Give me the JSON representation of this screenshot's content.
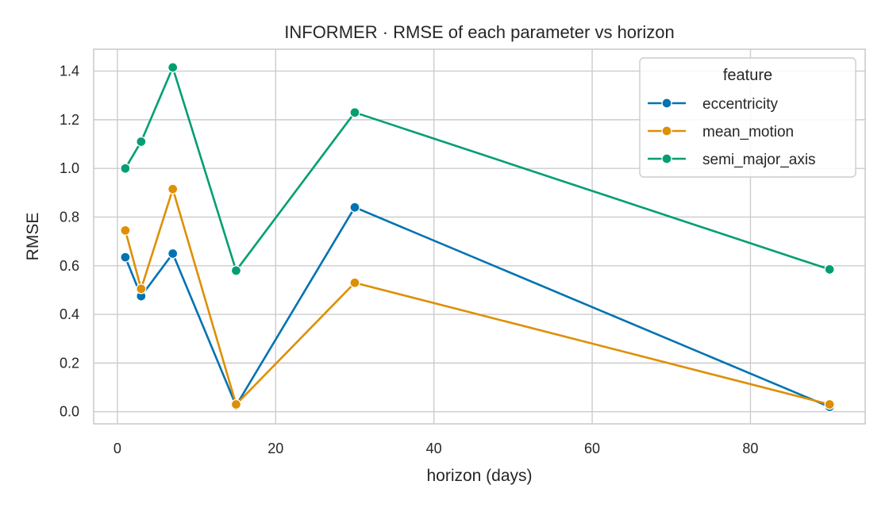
{
  "chart_data": {
    "type": "line",
    "title": "INFORMER · RMSE of each parameter vs horizon",
    "xlabel": "horizon (days)",
    "ylabel": "RMSE",
    "xlim": [
      -3,
      94.5
    ],
    "ylim": [
      -0.05,
      1.49
    ],
    "x_ticks": [
      0,
      20,
      40,
      60,
      80
    ],
    "y_ticks": [
      0.0,
      0.2,
      0.4,
      0.6,
      0.8,
      1.0,
      1.2,
      1.4
    ],
    "x_tick_labels": [
      "0",
      "20",
      "40",
      "60",
      "80"
    ],
    "y_tick_labels": [
      "0.0",
      "0.2",
      "0.4",
      "0.6",
      "0.8",
      "1.0",
      "1.2",
      "1.4"
    ],
    "grid": true,
    "legend": {
      "title": "feature",
      "placement": "top-right"
    },
    "x": [
      1,
      3,
      7,
      15,
      30,
      90
    ],
    "series": [
      {
        "name": "eccentricity",
        "color": "#0173b2",
        "values": [
          0.635,
          0.475,
          0.65,
          0.025,
          0.84,
          0.02
        ]
      },
      {
        "name": "mean_motion",
        "color": "#de8f05",
        "values": [
          0.745,
          0.505,
          0.915,
          0.03,
          0.53,
          0.03
        ]
      },
      {
        "name": "semi_major_axis",
        "color": "#029e73",
        "values": [
          1.0,
          1.11,
          1.415,
          0.58,
          1.23,
          0.585
        ]
      }
    ]
  }
}
